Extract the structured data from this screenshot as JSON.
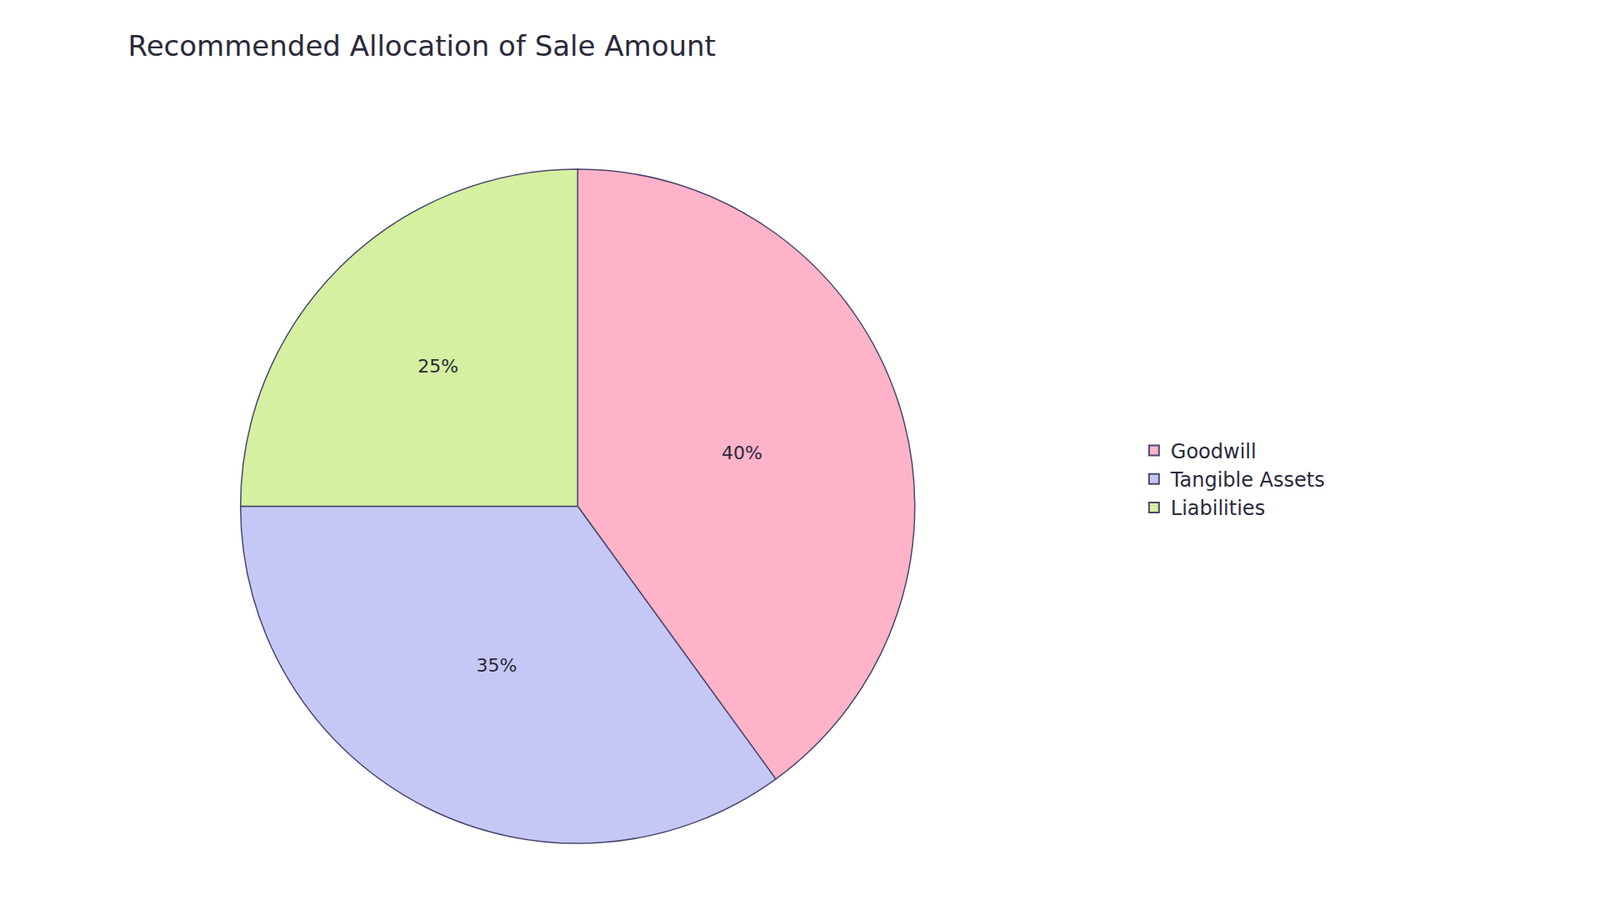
{
  "chart_data": {
    "type": "pie",
    "title": "Recommended Allocation of Sale Amount",
    "categories": [
      "Goodwill",
      "Tangible Assets",
      "Liabilities"
    ],
    "values": [
      40,
      35,
      25
    ],
    "value_labels": [
      "40%",
      "35%",
      "25%"
    ],
    "colors": [
      "#FFB3C8",
      "#C5C8F5",
      "#D4F0A0"
    ],
    "data_labels": true,
    "legend": "right"
  }
}
